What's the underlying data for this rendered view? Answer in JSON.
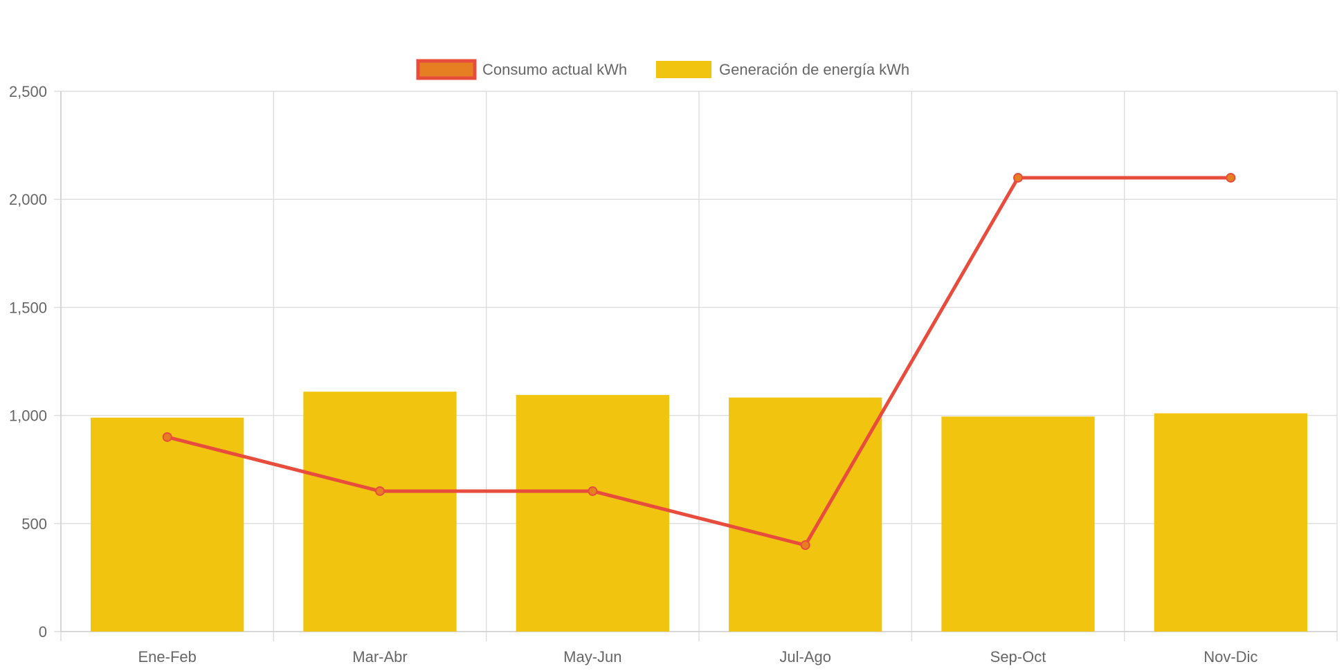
{
  "chart_data": {
    "type": "bar",
    "categories": [
      "Ene-Feb",
      "Mar-Abr",
      "May-Jun",
      "Jul-Ago",
      "Sep-Oct",
      "Nov-Dic"
    ],
    "series": [
      {
        "name": "Consumo actual kWh",
        "type": "line",
        "values": [
          900,
          650,
          650,
          400,
          2100,
          2100
        ],
        "color": "#e84c3d",
        "point_fill": "#e67e22"
      },
      {
        "name": "Generación de energía kWh",
        "type": "bar",
        "values": [
          990,
          1110,
          1095,
          1083,
          995,
          1010
        ],
        "color": "#f1c40f"
      }
    ],
    "ylim": [
      0,
      2500
    ],
    "yticks": [
      0,
      500,
      1000,
      1500,
      2000,
      2500
    ],
    "ytick_labels": [
      "0",
      "500",
      "1,000",
      "1,500",
      "2,000",
      "2,500"
    ],
    "grid": true,
    "legend_position": "top-center",
    "colors": {
      "grid": "#dddddd",
      "text": "#666666"
    }
  }
}
